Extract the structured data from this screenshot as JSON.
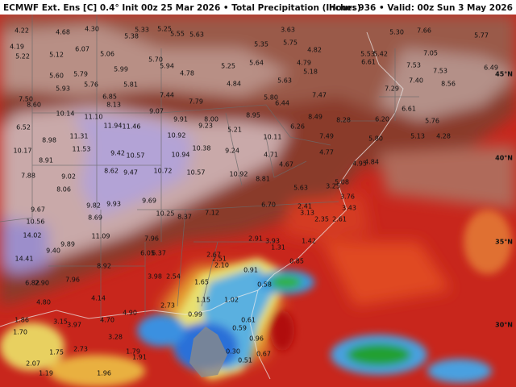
{
  "header": {
    "title": "ECMWF Ext. Ens [C] 0.4° Init 00z 25 Mar 2026 • Total Precipitation (Inches)",
    "valid": "Hour: 936 • Valid: 00z Sun 3 May 2026"
  },
  "map": {
    "latitude_labels": [
      "45°N",
      "40°N",
      "35°N",
      "30°N"
    ],
    "point_values": [
      "4.22",
      "4.68",
      "4.30",
      "5.38",
      "5.33",
      "5.25",
      "5.55",
      "5.63",
      "3.63",
      "5.30",
      "7.66",
      "5.77",
      "4.19",
      "5.22",
      "5.12",
      "6.07",
      "5.06",
      "5.70",
      "5.35",
      "5.75",
      "4.82",
      "5.53",
      "5.42",
      "6.61",
      "5.60",
      "5.79",
      "5.99",
      "5.94",
      "4.78",
      "5.25",
      "5.64",
      "4.79",
      "5.18",
      "7.53",
      "7.05",
      "7.40",
      "7.53",
      "8.56",
      "6.49",
      "5.93",
      "5.76",
      "5.81",
      "4.84",
      "5.63",
      "7.29",
      "7.50",
      "8.60",
      "6.85",
      "8.13",
      "7.44",
      "7.79",
      "5.80",
      "6.44",
      "7.47",
      "6.61",
      "10.14",
      "11.10",
      "9.07",
      "9.91",
      "8.00",
      "9.23",
      "8.95",
      "8.49",
      "8.28",
      "6.20",
      "5.76",
      "6.52",
      "11.94",
      "11.46",
      "10.92",
      "5.21",
      "6.26",
      "7.49",
      "5.80",
      "5.13",
      "4.28",
      "8.98",
      "11.31",
      "9.42",
      "10.57",
      "10.94",
      "10.38",
      "9.24",
      "10.11",
      "4.71",
      "4.77",
      "10.17",
      "11.53",
      "8.91",
      "8.62",
      "9.47",
      "10.72",
      "10.57",
      "10.92",
      "8.81",
      "4.67",
      "4.95",
      "4.84",
      "7.88",
      "9.02",
      "8.06",
      "9.69",
      "5.63",
      "3.76",
      "3.25",
      "5.08",
      "9.82",
      "9.93",
      "6.70",
      "3.13",
      "2.41",
      "3.43",
      "2.35",
      "2.61",
      "9.67",
      "10.25",
      "8.37",
      "7.12",
      "10.56",
      "8.69",
      "14.02",
      "9.89",
      "11.09",
      "7.96",
      "2.91",
      "3.93",
      "1.42",
      "1.31",
      "9.40",
      "6.05",
      "6.37",
      "2.67",
      "2.51",
      "2.10",
      "0.85",
      "14.41",
      "8.92",
      "0.91",
      "6.82",
      "2.90",
      "7.96",
      "3.98",
      "2.54",
      "1.65",
      "0.58",
      "4.80",
      "4.14",
      "1.15",
      "1.02",
      "4.90",
      "2.73",
      "0.99",
      "4.70",
      "0.61",
      "1.86",
      "3.15",
      "3.97",
      "3.28",
      "0.59",
      "1.70",
      "0.96",
      "1.75",
      "2.73",
      "1.79",
      "1.91",
      "0.30",
      "0.67",
      "0.51",
      "1.19",
      "1.96",
      "2.07"
    ]
  }
}
